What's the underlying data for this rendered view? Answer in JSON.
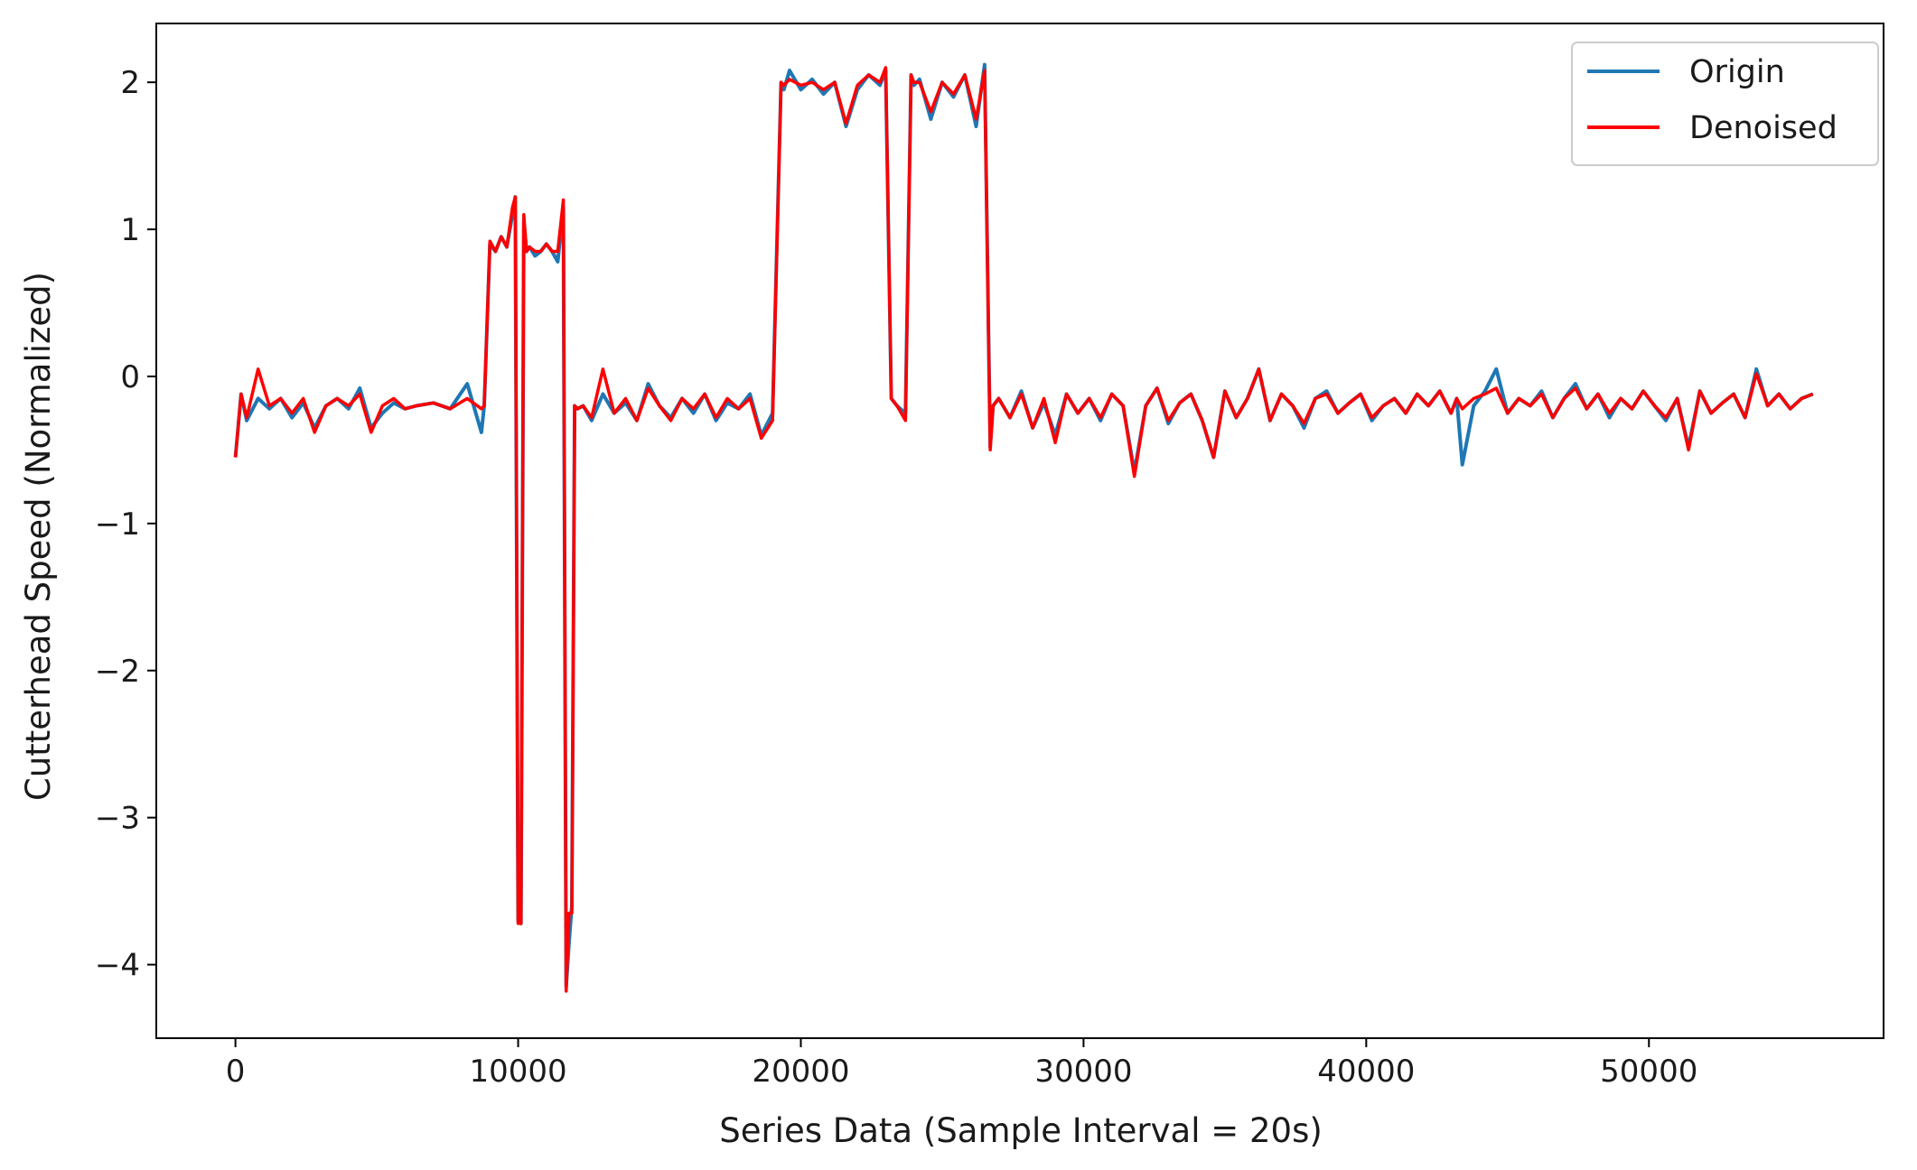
{
  "chart_data": {
    "type": "line",
    "title": "",
    "xlabel": "Series Data (Sample Interval = 20s)",
    "ylabel": "Cutterhead Speed (Normalized)",
    "xlim": [
      -2800,
      58300
    ],
    "ylim": [
      -4.5,
      2.4
    ],
    "xticks": [
      0,
      10000,
      20000,
      30000,
      40000,
      50000
    ],
    "xtick_labels": [
      "0",
      "10000",
      "20000",
      "30000",
      "40000",
      "50000"
    ],
    "yticks": [
      -4,
      -3,
      -2,
      -1,
      0,
      1,
      2
    ],
    "ytick_labels": [
      "−4",
      "−3",
      "−2",
      "−1",
      "0",
      "1",
      "2"
    ],
    "grid": false,
    "legend_position": "top-right",
    "series": [
      {
        "name": "Origin",
        "color": "#1f77b4",
        "x": [
          0,
          200,
          400,
          800,
          1200,
          1600,
          2000,
          2400,
          2800,
          3200,
          3600,
          4000,
          4400,
          4800,
          5200,
          5600,
          6000,
          6400,
          7000,
          7600,
          8200,
          8700,
          8800,
          9000,
          9200,
          9400,
          9600,
          9800,
          9900,
          10000,
          10100,
          10200,
          10300,
          10400,
          10600,
          10800,
          11000,
          11200,
          11400,
          11600,
          11700,
          11800,
          11900,
          12000,
          12100,
          12300,
          12600,
          13000,
          13400,
          13800,
          14200,
          14600,
          15000,
          15400,
          15800,
          16200,
          16600,
          17000,
          17400,
          17800,
          18200,
          18600,
          19000,
          19300,
          19400,
          19600,
          20000,
          20400,
          20800,
          21200,
          21600,
          22000,
          22400,
          22800,
          23000,
          23200,
          23400,
          23700,
          23900,
          24000,
          24200,
          24600,
          25000,
          25400,
          25800,
          26200,
          26500,
          26700,
          26800,
          27000,
          27400,
          27800,
          28200,
          28600,
          29000,
          29400,
          29800,
          30200,
          30600,
          31000,
          31400,
          31800,
          32200,
          32600,
          33000,
          33400,
          33800,
          34200,
          34600,
          35000,
          35400,
          35800,
          36200,
          36600,
          37000,
          37400,
          37800,
          38200,
          38600,
          39000,
          39400,
          39800,
          40200,
          40600,
          41000,
          41400,
          41800,
          42200,
          42600,
          43000,
          43200,
          43400,
          43800,
          44200,
          44600,
          45000,
          45400,
          45800,
          46200,
          46600,
          47000,
          47400,
          47800,
          48200,
          48600,
          49000,
          49400,
          49800,
          50200,
          50600,
          51000,
          51400,
          51800,
          52200,
          52600,
          53000,
          53400,
          53800,
          54200,
          54600,
          55000,
          55400,
          55800
        ],
        "y": [
          -0.55,
          -0.12,
          -0.3,
          -0.15,
          -0.22,
          -0.15,
          -0.28,
          -0.18,
          -0.35,
          -0.2,
          -0.15,
          -0.22,
          -0.08,
          -0.35,
          -0.25,
          -0.18,
          -0.22,
          -0.2,
          -0.18,
          -0.22,
          -0.05,
          -0.38,
          -0.2,
          0.9,
          0.85,
          0.95,
          0.88,
          1.1,
          1.22,
          -3.7,
          -3.72,
          1.05,
          0.85,
          0.88,
          0.82,
          0.85,
          0.9,
          0.85,
          0.78,
          1.15,
          -4.15,
          -3.85,
          -3.6,
          -0.2,
          -0.22,
          -0.2,
          -0.3,
          -0.12,
          -0.25,
          -0.18,
          -0.3,
          -0.05,
          -0.2,
          -0.28,
          -0.15,
          -0.25,
          -0.12,
          -0.3,
          -0.18,
          -0.22,
          -0.12,
          -0.4,
          -0.25,
          2.0,
          1.95,
          2.08,
          1.95,
          2.02,
          1.92,
          2.0,
          1.7,
          1.95,
          2.05,
          1.98,
          2.08,
          -0.15,
          -0.2,
          -0.25,
          2.05,
          1.98,
          2.02,
          1.75,
          2.0,
          1.9,
          2.05,
          1.7,
          2.12,
          -0.48,
          -0.2,
          -0.15,
          -0.28,
          -0.1,
          -0.35,
          -0.18,
          -0.4,
          -0.12,
          -0.25,
          -0.15,
          -0.3,
          -0.12,
          -0.2,
          -0.65,
          -0.2,
          -0.08,
          -0.32,
          -0.18,
          -0.12,
          -0.3,
          -0.55,
          -0.1,
          -0.28,
          -0.15,
          0.05,
          -0.3,
          -0.12,
          -0.2,
          -0.35,
          -0.15,
          -0.1,
          -0.25,
          -0.18,
          -0.12,
          -0.3,
          -0.2,
          -0.15,
          -0.25,
          -0.12,
          -0.2,
          -0.1,
          -0.25,
          -0.15,
          -0.6,
          -0.2,
          -0.1,
          0.05,
          -0.25,
          -0.15,
          -0.2,
          -0.1,
          -0.28,
          -0.15,
          -0.05,
          -0.22,
          -0.12,
          -0.28,
          -0.15,
          -0.22,
          -0.1,
          -0.2,
          -0.3,
          -0.15,
          -0.48,
          -0.1,
          -0.25,
          -0.18,
          -0.12,
          -0.28,
          0.05,
          -0.2,
          -0.12,
          -0.22,
          -0.15,
          -0.12
        ]
      },
      {
        "name": "Denoised",
        "color": "#ff0000",
        "x": [
          0,
          200,
          400,
          800,
          1200,
          1600,
          2000,
          2400,
          2800,
          3200,
          3600,
          4000,
          4400,
          4800,
          5200,
          5600,
          6000,
          6400,
          7000,
          7600,
          8200,
          8700,
          8800,
          9000,
          9200,
          9400,
          9600,
          9800,
          9900,
          10000,
          10100,
          10200,
          10300,
          10400,
          10600,
          10800,
          11000,
          11200,
          11400,
          11600,
          11700,
          11800,
          11900,
          12000,
          12100,
          12300,
          12600,
          13000,
          13400,
          13800,
          14200,
          14600,
          15000,
          15400,
          15800,
          16200,
          16600,
          17000,
          17400,
          17800,
          18200,
          18600,
          19000,
          19300,
          19400,
          19600,
          20000,
          20400,
          20800,
          21200,
          21600,
          22000,
          22400,
          22800,
          23000,
          23200,
          23400,
          23700,
          23900,
          24000,
          24200,
          24600,
          25000,
          25400,
          25800,
          26200,
          26500,
          26700,
          26800,
          27000,
          27400,
          27800,
          28200,
          28600,
          29000,
          29400,
          29800,
          30200,
          30600,
          31000,
          31400,
          31800,
          32200,
          32600,
          33000,
          33400,
          33800,
          34200,
          34600,
          35000,
          35400,
          35800,
          36200,
          36600,
          37000,
          37400,
          37800,
          38200,
          38600,
          39000,
          39400,
          39800,
          40200,
          40600,
          41000,
          41400,
          41800,
          42200,
          42600,
          43000,
          43200,
          43400,
          43800,
          44200,
          44600,
          45000,
          45400,
          45800,
          46200,
          46600,
          47000,
          47400,
          47800,
          48200,
          48600,
          49000,
          49400,
          49800,
          50200,
          50600,
          51000,
          51400,
          51800,
          52200,
          52600,
          53000,
          53400,
          53800,
          54200,
          54600,
          55000,
          55400,
          55800
        ],
        "y": [
          -0.55,
          -0.12,
          -0.28,
          0.05,
          -0.2,
          -0.15,
          -0.25,
          -0.15,
          -0.38,
          -0.2,
          -0.15,
          -0.2,
          -0.12,
          -0.38,
          -0.2,
          -0.15,
          -0.22,
          -0.2,
          -0.18,
          -0.22,
          -0.15,
          -0.22,
          -0.2,
          0.92,
          0.85,
          0.95,
          0.88,
          1.15,
          1.22,
          -3.72,
          -3.72,
          1.1,
          0.85,
          0.88,
          0.85,
          0.85,
          0.9,
          0.85,
          0.85,
          1.2,
          -4.18,
          -3.65,
          -3.65,
          -0.2,
          -0.22,
          -0.2,
          -0.28,
          0.05,
          -0.25,
          -0.15,
          -0.3,
          -0.08,
          -0.2,
          -0.3,
          -0.15,
          -0.22,
          -0.12,
          -0.28,
          -0.15,
          -0.22,
          -0.15,
          -0.42,
          -0.3,
          2.0,
          1.98,
          2.02,
          1.98,
          2.0,
          1.95,
          2.0,
          1.72,
          1.98,
          2.05,
          2.0,
          2.1,
          -0.15,
          -0.2,
          -0.3,
          2.05,
          2.0,
          2.0,
          1.8,
          2.0,
          1.92,
          2.05,
          1.75,
          2.08,
          -0.5,
          -0.2,
          -0.15,
          -0.28,
          -0.12,
          -0.35,
          -0.15,
          -0.45,
          -0.12,
          -0.25,
          -0.15,
          -0.28,
          -0.12,
          -0.2,
          -0.68,
          -0.2,
          -0.08,
          -0.3,
          -0.18,
          -0.12,
          -0.3,
          -0.55,
          -0.1,
          -0.28,
          -0.15,
          0.05,
          -0.3,
          -0.12,
          -0.2,
          -0.32,
          -0.15,
          -0.12,
          -0.25,
          -0.18,
          -0.12,
          -0.28,
          -0.2,
          -0.15,
          -0.25,
          -0.12,
          -0.2,
          -0.1,
          -0.25,
          -0.15,
          -0.22,
          -0.15,
          -0.12,
          -0.08,
          -0.25,
          -0.15,
          -0.2,
          -0.12,
          -0.28,
          -0.15,
          -0.08,
          -0.22,
          -0.12,
          -0.25,
          -0.15,
          -0.22,
          -0.1,
          -0.2,
          -0.28,
          -0.15,
          -0.5,
          -0.1,
          -0.25,
          -0.18,
          -0.12,
          -0.28,
          0.02,
          -0.2,
          -0.12,
          -0.22,
          -0.15,
          -0.12
        ]
      }
    ]
  }
}
